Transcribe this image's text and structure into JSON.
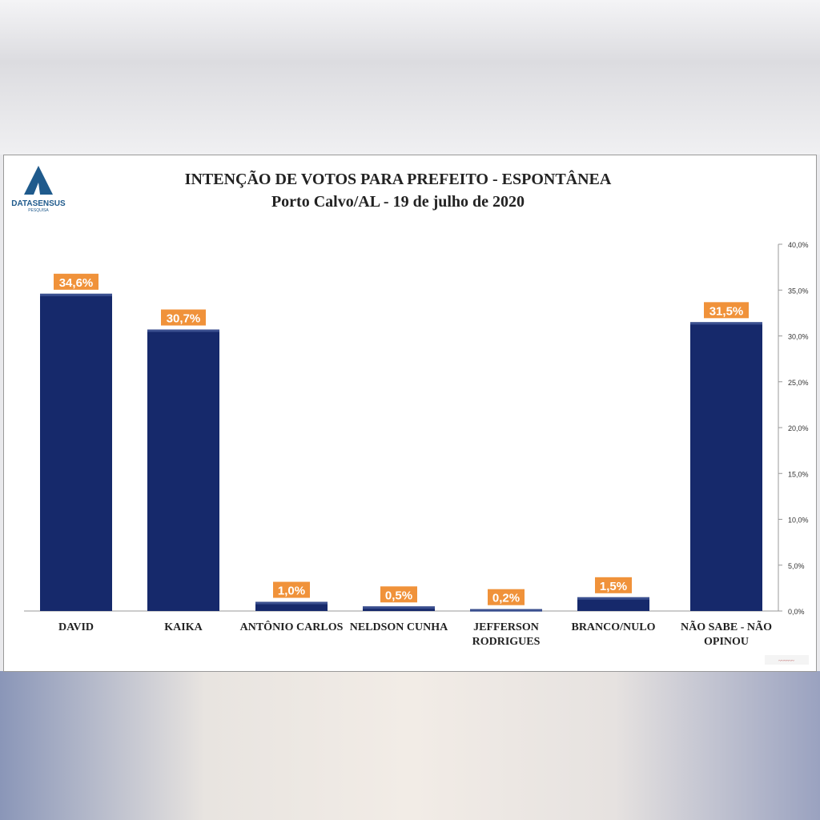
{
  "logo": {
    "text": "DATASENSUS",
    "subtext": "PESQUISA",
    "color": "#1f5a8c"
  },
  "chart_data": {
    "type": "bar",
    "title": "INTENÇÃO DE VOTOS PARA PREFEITO - ESPONTÂNEA",
    "subtitle": "Porto Calvo/AL - 19 de julho de 2020",
    "categories": [
      [
        "DAVID"
      ],
      [
        "KAIKA"
      ],
      [
        "ANTÔNIO CARLOS"
      ],
      [
        "NELDSON CUNHA"
      ],
      [
        "JEFFERSON",
        "RODRIGUES"
      ],
      [
        "BRANCO/NULO"
      ],
      [
        "NÃO SABE - NÃO",
        "OPINOU"
      ]
    ],
    "values": [
      34.6,
      30.7,
      1.0,
      0.5,
      0.2,
      1.5,
      31.5
    ],
    "labels": [
      "34,6%",
      "30,7%",
      "1,0%",
      "0,5%",
      "0,2%",
      "1,5%",
      "31,5%"
    ],
    "ylim": [
      0,
      40
    ],
    "yticks": [
      "0,0%",
      "5,0%",
      "10,0%",
      "15,0%",
      "20,0%",
      "25,0%",
      "30,0%",
      "35,0%",
      "40,0%"
    ],
    "yaxis_side": "right",
    "grid": false,
    "bar_color": "#16296b",
    "label_bg": "#f0923a"
  }
}
